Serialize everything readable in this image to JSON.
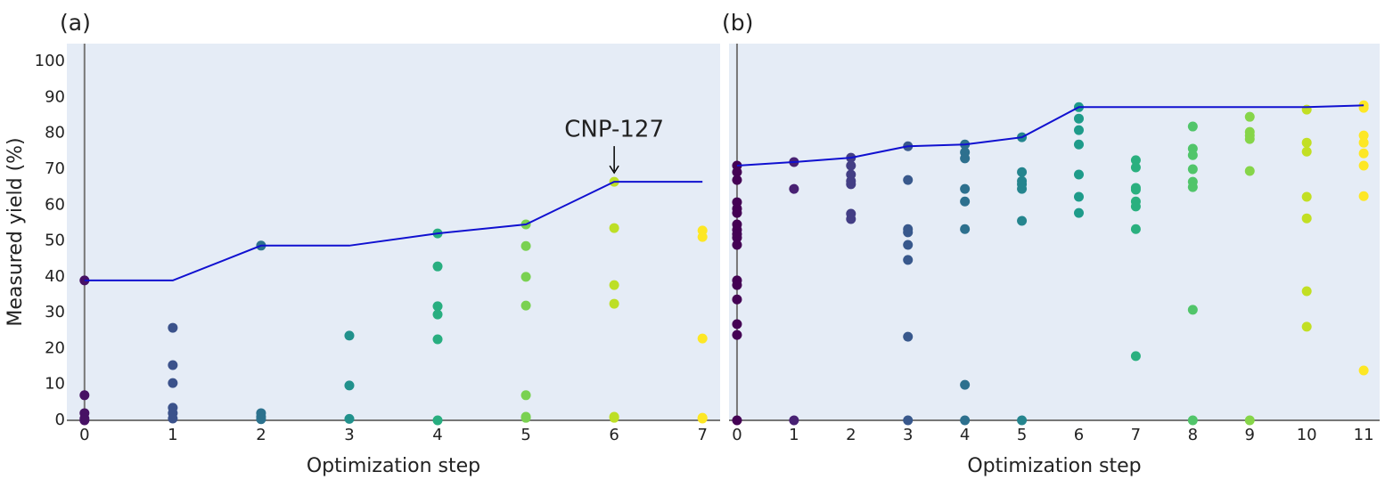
{
  "chart_data": [
    {
      "type": "scatter",
      "title": "(a)",
      "x_label": "Optimization step",
      "y_label": "Measured yield (%)",
      "xlim": [
        -0.2,
        7.2
      ],
      "ylim": [
        0,
        105
      ],
      "xticks": [
        0,
        1,
        2,
        3,
        4,
        5,
        6,
        7
      ],
      "yticks": [
        0,
        10,
        20,
        30,
        40,
        50,
        60,
        70,
        80,
        90,
        100
      ],
      "background": "#e5ecf6",
      "grid": false,
      "groups": [
        {
          "x": 0,
          "color": "#471164",
          "values": [
            39,
            7,
            2,
            0.5,
            0
          ]
        },
        {
          "x": 1,
          "color": "#3b528b",
          "values": [
            25.8,
            15.4,
            10.4,
            3.5,
            2,
            0.5
          ]
        },
        {
          "x": 2,
          "color": "#2c728e",
          "values": [
            48.7,
            2,
            1,
            0.3
          ]
        },
        {
          "x": 3,
          "color": "#21918c",
          "values": [
            23.6,
            9.7,
            0.4
          ]
        },
        {
          "x": 4,
          "color": "#28ae80",
          "values": [
            52.1,
            42.9,
            31.8,
            29.5,
            22.6,
            0
          ]
        },
        {
          "x": 5,
          "color": "#7ad151",
          "values": [
            54.6,
            48.6,
            40,
            32,
            7,
            1,
            0.7
          ]
        },
        {
          "x": 6,
          "color": "#bddf26",
          "values": [
            66.5,
            53.6,
            37.7,
            32.5,
            1,
            0.7
          ]
        },
        {
          "x": 7,
          "color": "#fde725",
          "values": [
            52.9,
            51.1,
            22.8,
            0.7,
            0.5
          ]
        }
      ],
      "best": {
        "color": "#1010d0",
        "x": [
          0,
          1,
          2,
          3,
          4,
          5,
          6,
          7
        ],
        "values": [
          39,
          39,
          48.7,
          48.7,
          52.1,
          54.6,
          66.5,
          66.5
        ]
      },
      "annotation": {
        "text": "CNP-127",
        "x": 6,
        "y": 66.5
      }
    },
    {
      "type": "scatter",
      "title": "(b)",
      "x_label": "Optimization step",
      "xlim": [
        -0.14,
        11.28
      ],
      "ylim": [
        0,
        105
      ],
      "xticks": [
        0,
        1,
        2,
        3,
        4,
        5,
        6,
        7,
        8,
        9,
        10,
        11
      ],
      "background": "#e5ecf6",
      "grid": false,
      "groups": [
        {
          "x": 0,
          "color": "#440154",
          "values": [
            71,
            69.2,
            67,
            60.8,
            59,
            57.8,
            54.6,
            53.1,
            51.9,
            50.9,
            48.9,
            39,
            37.7,
            33.7,
            26.8,
            23.8,
            0
          ]
        },
        {
          "x": 1,
          "color": "#482173",
          "values": [
            72,
            64.5,
            0
          ]
        },
        {
          "x": 2,
          "color": "#433e85",
          "values": [
            73.2,
            71,
            68.5,
            66.7,
            65.8,
            57.6,
            56.1
          ]
        },
        {
          "x": 3,
          "color": "#38588c",
          "values": [
            76.4,
            67,
            53.3,
            52.4,
            48.9,
            44.7,
            23.3,
            0
          ]
        },
        {
          "x": 4,
          "color": "#2d708e",
          "values": [
            76.9,
            74.7,
            73,
            64.5,
            61,
            53.3,
            9.9,
            0
          ]
        },
        {
          "x": 5,
          "color": "#25858e",
          "values": [
            78.9,
            69.2,
            66.7,
            65.8,
            64.5,
            55.6,
            0
          ]
        },
        {
          "x": 6,
          "color": "#1e9b8a",
          "values": [
            87.3,
            84.1,
            80.9,
            76.9,
            68.5,
            62.3,
            57.8
          ]
        },
        {
          "x": 7,
          "color": "#2ab07f",
          "values": [
            72.5,
            70.5,
            64.8,
            64.3,
            61,
            59.6,
            53.3,
            17.9
          ]
        },
        {
          "x": 8,
          "color": "#51c56a",
          "values": [
            81.9,
            75.7,
            73.9,
            70,
            66.5,
            65,
            30.8,
            0
          ]
        },
        {
          "x": 9,
          "color": "#86d549",
          "values": [
            84.6,
            80.4,
            79.4,
            78.4,
            69.5,
            0
          ]
        },
        {
          "x": 10,
          "color": "#c2df23",
          "values": [
            86.6,
            77.4,
            74.9,
            62.3,
            56.3,
            36,
            26.1
          ]
        },
        {
          "x": 11,
          "color": "#fde725",
          "values": [
            87.8,
            87.1,
            79.4,
            77.4,
            74.4,
            71,
            62.5,
            13.9
          ]
        }
      ],
      "best": {
        "color": "#1010d0",
        "x": [
          0,
          1,
          2,
          3,
          4,
          5,
          6,
          7,
          8,
          9,
          10,
          11
        ],
        "values": [
          71,
          72,
          73.2,
          76.4,
          76.9,
          78.9,
          87.3,
          87.3,
          87.3,
          87.3,
          87.3,
          87.8
        ]
      }
    }
  ]
}
